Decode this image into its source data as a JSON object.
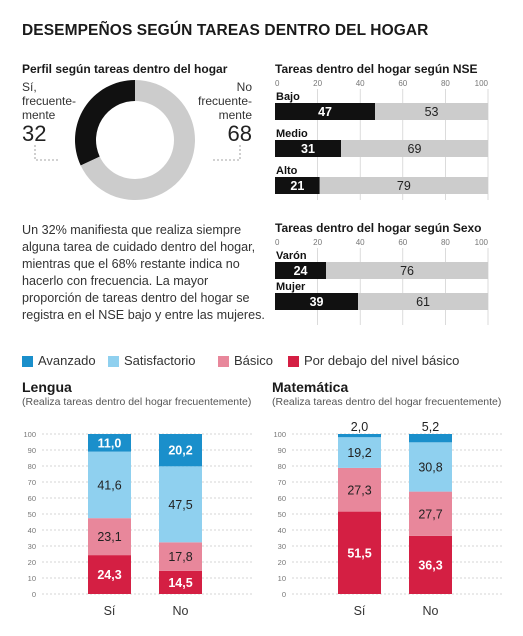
{
  "title": "DESEMPEÑOS SEGÚN TAREAS DENTRO DEL HOGAR",
  "donut": {
    "heading": "Perfil según tareas dentro del hogar",
    "left_label": [
      "Sí,",
      "frecuente-",
      "mente"
    ],
    "left_value": "32",
    "right_label": [
      "No",
      "frecuente-",
      "mente"
    ],
    "right_value": "68",
    "colors": {
      "si": "#111111",
      "no": "#cccccc"
    }
  },
  "paragraph": "Un 32% manifiesta que realiza siempre alguna tarea de cuidado dentro del hogar, mientras que el 68% restante indica no hacerlo con frecuencia. La mayor proporción de tareas dentro del hogar se registra en el NSE bajo y entre las mujeres.",
  "legend": {
    "items": [
      {
        "label": "Avanzado",
        "color": "#1a8fcb"
      },
      {
        "label": "Satisfactorio",
        "color": "#8fd0ef"
      },
      {
        "label": "Básico",
        "color": "#e8879b"
      },
      {
        "label": "Por debajo del nivel básico",
        "color": "#d41f43"
      }
    ]
  },
  "chart_data": [
    {
      "type": "bar",
      "orientation": "horizontal",
      "stacked": true,
      "title": "Perfil según tareas dentro del hogar",
      "subtitle": "",
      "title_full": "Tareas dentro del hogar según NSE",
      "categories": [
        "Bajo",
        "Medio",
        "Alto"
      ],
      "series": [
        {
          "name": "",
          "values": [
            47,
            31,
            21
          ],
          "color": "#111111"
        },
        {
          "name": "",
          "values": [
            53,
            69,
            79
          ],
          "color": "#cccccc"
        }
      ],
      "x_ticks": [
        "0",
        "20",
        "40",
        "60",
        "80",
        "100"
      ],
      "xlim": [
        0,
        100
      ]
    },
    {
      "type": "bar",
      "orientation": "horizontal",
      "stacked": true,
      "title_full": "Tareas dentro del hogar según Sexo",
      "categories": [
        "Varón",
        "Mujer"
      ],
      "series": [
        {
          "name": "",
          "values": [
            24,
            39
          ],
          "color": "#111111"
        },
        {
          "name": "",
          "values": [
            76,
            61
          ],
          "color": "#cccccc"
        }
      ],
      "x_ticks": [
        "0",
        "20",
        "40",
        "60",
        "80",
        "100"
      ],
      "xlim": [
        0,
        100
      ]
    },
    {
      "type": "bar",
      "orientation": "vertical",
      "stacked": true,
      "title_full": "Lengua",
      "subtitle": "(Realiza tareas dentro del hogar frecuentemente)",
      "categories": [
        "Sí",
        "No"
      ],
      "series": [
        {
          "name": "Por debajo del nivel básico",
          "values": [
            "24,3",
            "14,5"
          ]
        },
        {
          "name": "Básico",
          "values": [
            "23,1",
            "17,8"
          ]
        },
        {
          "name": "Satisfactorio",
          "values": [
            "41,6",
            "47,5"
          ]
        },
        {
          "name": "Avanzado",
          "values": [
            "11,0",
            "20,2"
          ]
        }
      ],
      "y_ticks": [
        "0",
        "10",
        "20",
        "30",
        "40",
        "50",
        "60",
        "70",
        "80",
        "90",
        "100"
      ],
      "ylim": [
        0,
        100
      ]
    },
    {
      "type": "bar",
      "orientation": "vertical",
      "stacked": true,
      "title_full": "Matemática",
      "subtitle": "(Realiza tareas dentro del hogar frecuentemente)",
      "categories": [
        "Sí",
        "No"
      ],
      "series": [
        {
          "name": "Por debajo del nivel básico",
          "values": [
            "51,5",
            "36,3"
          ]
        },
        {
          "name": "Básico",
          "values": [
            "27,3",
            "27,7"
          ]
        },
        {
          "name": "Satisfactorio",
          "values": [
            "19,2",
            "30,8"
          ]
        },
        {
          "name": "Avanzado",
          "values": [
            "2,0",
            "5,2"
          ]
        }
      ],
      "y_ticks": [
        "0",
        "10",
        "20",
        "30",
        "40",
        "50",
        "60",
        "70",
        "80",
        "90",
        "100"
      ],
      "ylim": [
        0,
        100
      ]
    }
  ]
}
